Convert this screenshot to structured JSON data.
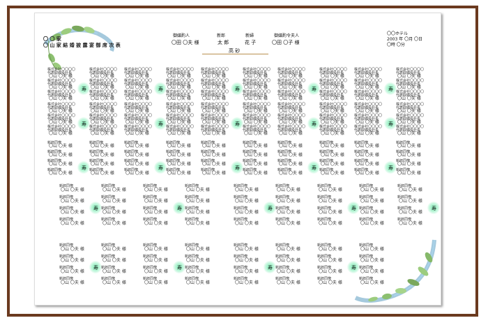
{
  "document": {
    "title_line1": "〇 〇 家",
    "title_line2": "〇 山 家 結 婚 披 露 宴 御 席 次 表",
    "header": {
      "mediator_label": "御媒酌人",
      "mediator_name": "〇田 〇夫 様",
      "groom_label": "新郎",
      "groom_name": "太 郎",
      "bride_label": "新婦",
      "bride_name": "花 子",
      "mediator_wife_label": "御媒酌令夫人",
      "mediator_wife_name": "〇田 〇子 様",
      "takasago": "高 砂"
    },
    "venue": {
      "hotel": "〇〇ホテル",
      "date": "2003 年 〇月 〇日",
      "time": "〇時 〇分"
    },
    "kotobuki": "寿",
    "guest_entries": {
      "company": "株式会社〇〇〇〇",
      "rep": "代表取締役社長",
      "name": "〇山 〇夫 様",
      "relation": "新郎同僚"
    }
  }
}
